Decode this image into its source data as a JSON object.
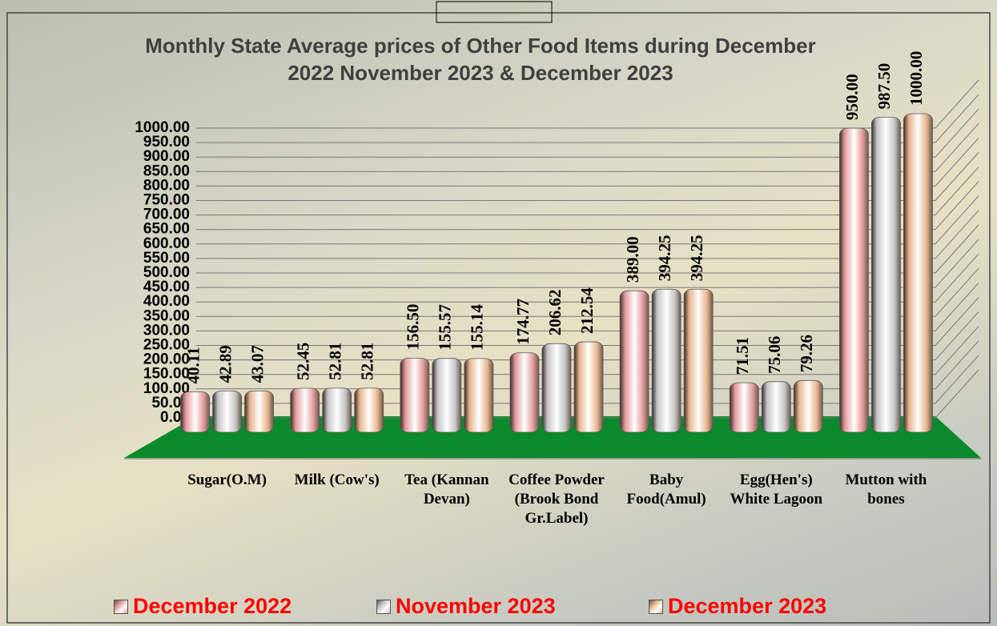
{
  "chart_data": {
    "type": "bar",
    "title": "Monthly State Average prices of Other Food Items during December 2022  November 2023  & December 2023",
    "categories": [
      "Sugar(O.M)",
      "Milk (Cow's)",
      "Tea (Kannan Devan)",
      "Coffee Powder (Brook Bond Gr.Label)",
      "Baby Food(Amul)",
      "Egg(Hen's) White Lagoon",
      "Mutton with bones"
    ],
    "series": [
      {
        "name": "December 2022",
        "color": "#e39a9a",
        "values": [
          40.11,
          52.45,
          156.5,
          174.77,
          389.0,
          71.51,
          950.0
        ],
        "value_labels": [
          "40.11",
          "52.45",
          "156.50",
          "174.77",
          "389.00",
          "71.51",
          "950.00"
        ]
      },
      {
        "name": "November 2023",
        "color": "#c4c4c4",
        "values": [
          42.89,
          52.81,
          155.57,
          206.62,
          394.25,
          75.06,
          987.5
        ],
        "value_labels": [
          "42.89",
          "52.81",
          "155.57",
          "206.62",
          "394.25",
          "75.06",
          "987.50"
        ]
      },
      {
        "name": "December 2023",
        "color": "#e6b48a",
        "values": [
          43.07,
          52.81,
          155.14,
          212.54,
          394.25,
          79.26,
          1000.0
        ],
        "value_labels": [
          "43.07",
          "52.81",
          "155.14",
          "212.54",
          "394.25",
          "79.26",
          "1000.00"
        ]
      }
    ],
    "ylim": [
      0,
      1000
    ],
    "yticks": [
      {
        "value": 0,
        "label": "0.00"
      },
      {
        "value": 50,
        "label": "50.00"
      },
      {
        "value": 100,
        "label": "100.00"
      },
      {
        "value": 150,
        "label": "150.00"
      },
      {
        "value": 200,
        "label": "200.00"
      },
      {
        "value": 250,
        "label": "250.00"
      },
      {
        "value": 300,
        "label": "300.00"
      },
      {
        "value": 350,
        "label": "350.00"
      },
      {
        "value": 400,
        "label": "400.00"
      },
      {
        "value": 450,
        "label": "450.00"
      },
      {
        "value": 500,
        "label": "500.00"
      },
      {
        "value": 550,
        "label": "550.00"
      },
      {
        "value": 600,
        "label": "600.00"
      },
      {
        "value": 650,
        "label": "650.00"
      },
      {
        "value": 700,
        "label": "700.00"
      },
      {
        "value": 750,
        "label": "750.00"
      },
      {
        "value": 800,
        "label": "800.00"
      },
      {
        "value": 850,
        "label": "850.00"
      },
      {
        "value": 900,
        "label": "900.00"
      },
      {
        "value": 950,
        "label": "950.00"
      },
      {
        "value": 1000,
        "label": "1000.00"
      }
    ],
    "grid": true,
    "legend": "bottom"
  }
}
